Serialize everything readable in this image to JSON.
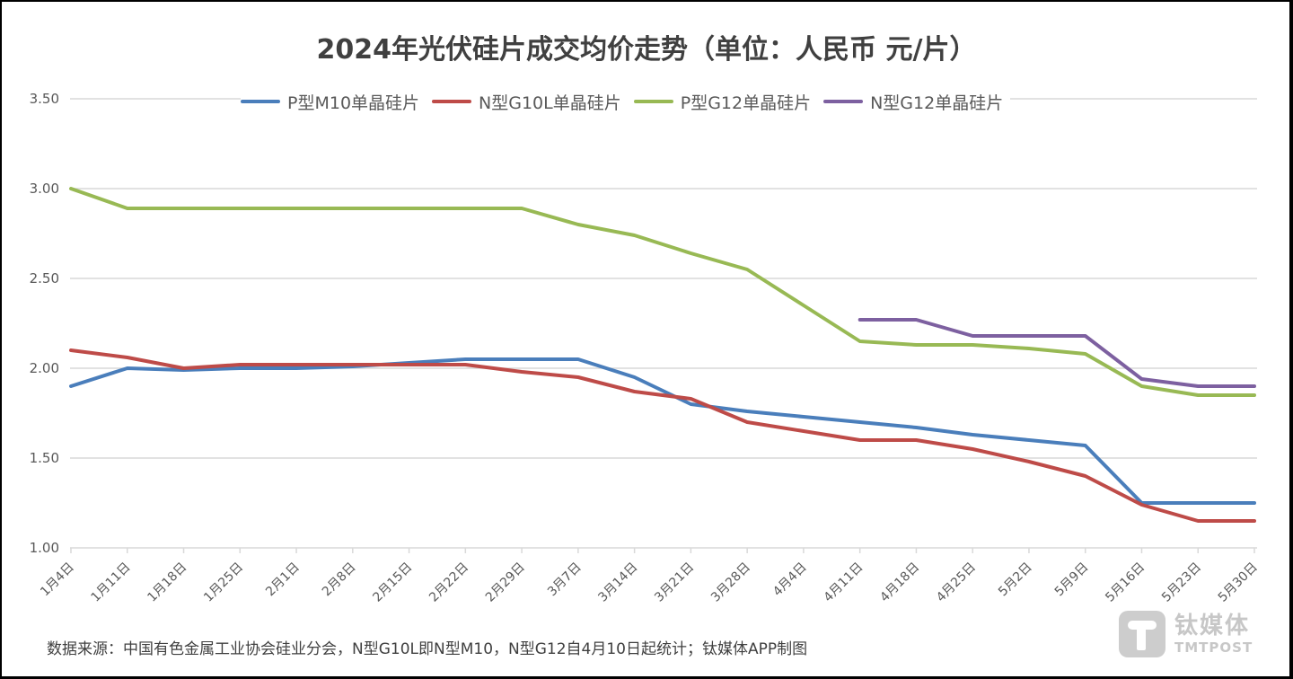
{
  "chart_data": {
    "type": "line",
    "title": "2024年光伏硅片成交均价走势（单位：人民币 元/片）",
    "xlabel": "",
    "ylabel": "",
    "ylim": [
      1.0,
      3.5
    ],
    "yticks": [
      "1.00",
      "1.50",
      "2.00",
      "2.50",
      "3.00",
      "3.50"
    ],
    "ytick_values": [
      1.0,
      1.5,
      2.0,
      2.5,
      3.0,
      3.5
    ],
    "grid": true,
    "legend_position": "top",
    "categories": [
      "1月4日",
      "1月11日",
      "1月18日",
      "1月25日",
      "2月1日",
      "2月8日",
      "2月15日",
      "2月22日",
      "2月29日",
      "3月7日",
      "3月14日",
      "3月21日",
      "3月28日",
      "4月4日",
      "4月11日",
      "4月18日",
      "4月25日",
      "5月2日",
      "5月9日",
      "5月16日",
      "5月23日",
      "5月30日"
    ],
    "series": [
      {
        "name": "P型M10单晶硅片",
        "color": "#4a7ebb",
        "values": [
          1.9,
          2.0,
          1.99,
          2.0,
          2.0,
          2.01,
          2.03,
          2.05,
          2.05,
          2.05,
          1.95,
          1.8,
          1.76,
          1.73,
          1.7,
          1.67,
          1.63,
          1.6,
          1.57,
          1.25,
          1.25,
          1.25
        ]
      },
      {
        "name": "N型G10L单晶硅片",
        "color": "#be4b48",
        "values": [
          2.1,
          2.06,
          2.0,
          2.02,
          2.02,
          2.02,
          2.02,
          2.02,
          1.98,
          1.95,
          1.87,
          1.83,
          1.7,
          1.65,
          1.6,
          1.6,
          1.55,
          1.48,
          1.4,
          1.24,
          1.15,
          1.15
        ]
      },
      {
        "name": "P型G12单晶硅片",
        "color": "#98b954",
        "values": [
          3.0,
          2.89,
          2.89,
          2.89,
          2.89,
          2.89,
          2.89,
          2.89,
          2.89,
          2.8,
          2.74,
          2.64,
          2.55,
          2.35,
          2.15,
          2.13,
          2.13,
          2.11,
          2.08,
          1.9,
          1.85,
          1.85
        ]
      },
      {
        "name": "N型G12单晶硅片",
        "color": "#7d60a0",
        "values": [
          null,
          null,
          null,
          null,
          null,
          null,
          null,
          null,
          null,
          null,
          null,
          null,
          null,
          null,
          2.27,
          2.27,
          2.18,
          2.18,
          2.18,
          1.94,
          1.9,
          1.9
        ]
      }
    ]
  },
  "footer": {
    "source": "数据来源：中国有色金属工业协会硅业分会，N型G10L即N型M10，N型G12自4月10日起统计；钛媒体APP制图"
  },
  "watermark": {
    "cn": "钛媒体",
    "en": "TMTPOST"
  }
}
